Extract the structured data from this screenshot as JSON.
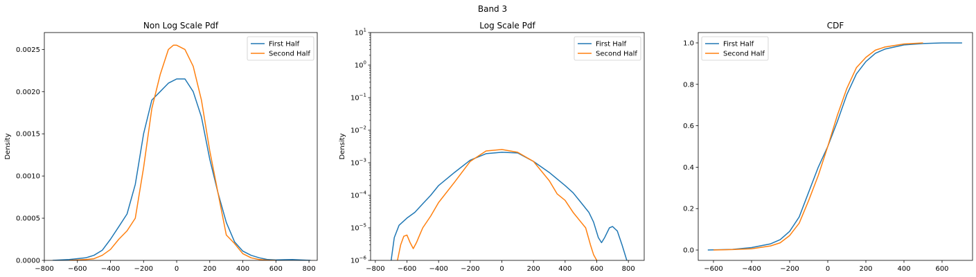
{
  "figure": {
    "title": "Band 3"
  },
  "colors": {
    "first_half": "#1f77b4",
    "second_half": "#ff7f0e"
  },
  "chart_data": [
    {
      "type": "line",
      "title": "Non Log Scale Pdf",
      "xlabel": "",
      "ylabel": "Density",
      "xlim": [
        -800,
        850
      ],
      "ylim": [
        0,
        0.0027
      ],
      "yscale": "linear",
      "xticks": [
        -800,
        -600,
        -400,
        -200,
        0,
        200,
        400,
        600,
        800
      ],
      "xtick_labels": [
        "−800",
        "−600",
        "−400",
        "−200",
        "0",
        "200",
        "400",
        "600",
        "800"
      ],
      "yticks": [
        0,
        0.0005,
        0.001,
        0.0015,
        0.002,
        0.0025
      ],
      "ytick_labels": [
        "0.0000",
        "0.0005",
        "0.0010",
        "0.0015",
        "0.0020",
        "0.0025"
      ],
      "legend": {
        "position": "top-right",
        "entries": [
          "First Half",
          "Second Half"
        ]
      },
      "series": [
        {
          "name": "First Half",
          "color": "#1f77b4",
          "x": [
            -750,
            -650,
            -550,
            -500,
            -450,
            -400,
            -350,
            -300,
            -250,
            -200,
            -150,
            -100,
            -50,
            0,
            50,
            100,
            150,
            200,
            250,
            300,
            350,
            400,
            450,
            500,
            550,
            600,
            650,
            700,
            750,
            810
          ],
          "y": [
            0,
            1e-05,
            3e-05,
            6e-05,
            0.00012,
            0.00025,
            0.0004,
            0.00055,
            0.0009,
            0.0015,
            0.0019,
            0.002,
            0.0021,
            0.00215,
            0.00215,
            0.002,
            0.0017,
            0.0012,
            0.0008,
            0.00045,
            0.00022,
            0.00011,
            6e-05,
            3e-05,
            1e-05,
            5e-06,
            8e-06,
            1e-05,
            5e-06,
            0
          ]
        },
        {
          "name": "Second Half",
          "color": "#ff7f0e",
          "x": [
            -650,
            -550,
            -500,
            -450,
            -400,
            -350,
            -300,
            -250,
            -200,
            -150,
            -100,
            -50,
            -20,
            0,
            50,
            100,
            150,
            200,
            250,
            300,
            350,
            400,
            450,
            500,
            550,
            600
          ],
          "y": [
            0,
            1e-05,
            2e-05,
            6e-05,
            0.00013,
            0.00025,
            0.00035,
            0.0005,
            0.0011,
            0.0018,
            0.0022,
            0.0025,
            0.00255,
            0.00255,
            0.0025,
            0.0023,
            0.0019,
            0.0013,
            0.0008,
            0.0003,
            0.0002,
            8e-05,
            3e-05,
            1e-05,
            2e-06,
            0
          ]
        }
      ]
    },
    {
      "type": "line",
      "title": "Log Scale Pdf",
      "xlabel": "",
      "ylabel": "Density",
      "xlim": [
        -830,
        900
      ],
      "ylim": [
        1e-06,
        10
      ],
      "yscale": "log",
      "xticks": [
        -800,
        -600,
        -400,
        -200,
        0,
        200,
        400,
        600,
        800
      ],
      "xtick_labels": [
        "−800",
        "−600",
        "−400",
        "−200",
        "0",
        "200",
        "400",
        "600",
        "800"
      ],
      "yticks": [
        1e-06,
        1e-05,
        0.0001,
        0.001,
        0.01,
        0.1,
        1,
        10
      ],
      "ytick_mantissa": [
        "10",
        "10",
        "10",
        "10",
        "10",
        "10",
        "10",
        "10"
      ],
      "ytick_exponents": [
        "−6",
        "−5",
        "−4",
        "−3",
        "−2",
        "−1",
        "0",
        "1"
      ],
      "legend": {
        "position": "top-right",
        "entries": [
          "First Half",
          "Second Half"
        ]
      },
      "series": [
        {
          "name": "First Half",
          "color": "#1f77b4",
          "x": [
            -700,
            -680,
            -650,
            -600,
            -550,
            -500,
            -450,
            -400,
            -300,
            -200,
            -100,
            0,
            100,
            200,
            300,
            400,
            450,
            500,
            550,
            580,
            610,
            630,
            650,
            680,
            700,
            730,
            760,
            790
          ],
          "y": [
            1e-06,
            5e-06,
            1.2e-05,
            2e-05,
            3e-05,
            5.5e-05,
            0.0001,
            0.0002,
            0.0005,
            0.0012,
            0.0019,
            0.0021,
            0.002,
            0.0011,
            0.0005,
            0.0002,
            0.00012,
            6e-05,
            3e-05,
            1.5e-05,
            5e-06,
            3.5e-06,
            5e-06,
            1e-05,
            1.1e-05,
            8e-06,
            3e-06,
            1e-06
          ]
        },
        {
          "name": "Second Half",
          "color": "#ff7f0e",
          "x": [
            -660,
            -640,
            -620,
            -600,
            -580,
            -560,
            -540,
            -520,
            -500,
            -450,
            -400,
            -300,
            -200,
            -100,
            0,
            100,
            200,
            300,
            350,
            400,
            450,
            500,
            530,
            560,
            580,
            600
          ],
          "y": [
            1e-06,
            3e-06,
            5.5e-06,
            6e-06,
            3.5e-06,
            2.3e-06,
            3.5e-06,
            6e-06,
            1e-05,
            2.3e-05,
            6e-05,
            0.00025,
            0.0011,
            0.0023,
            0.00255,
            0.0021,
            0.0011,
            0.00028,
            0.00011,
            7e-05,
            3e-05,
            1.5e-05,
            1e-05,
            3e-06,
            1.5e-06,
            1e-06
          ]
        }
      ]
    },
    {
      "type": "line",
      "title": "CDF",
      "xlabel": "",
      "ylabel": "",
      "xlim": [
        -680,
        760
      ],
      "ylim": [
        -0.05,
        1.05
      ],
      "yscale": "linear",
      "xticks": [
        -600,
        -400,
        -200,
        0,
        200,
        400,
        600
      ],
      "xtick_labels": [
        "−600",
        "−400",
        "−200",
        "0",
        "200",
        "400",
        "600"
      ],
      "yticks": [
        0,
        0.2,
        0.4,
        0.6,
        0.8,
        1.0
      ],
      "ytick_labels": [
        "0.0",
        "0.2",
        "0.4",
        "0.6",
        "0.8",
        "1.0"
      ],
      "legend": {
        "position": "top-left",
        "entries": [
          "First Half",
          "Second Half"
        ]
      },
      "series": [
        {
          "name": "First Half",
          "color": "#1f77b4",
          "x": [
            -630,
            -500,
            -400,
            -300,
            -250,
            -200,
            -150,
            -100,
            -50,
            0,
            50,
            100,
            150,
            200,
            250,
            300,
            400,
            500,
            600,
            705
          ],
          "y": [
            0,
            0.003,
            0.012,
            0.03,
            0.05,
            0.09,
            0.16,
            0.28,
            0.4,
            0.5,
            0.62,
            0.75,
            0.85,
            0.91,
            0.95,
            0.97,
            0.99,
            0.997,
            1.0,
            1.0
          ]
        },
        {
          "name": "Second Half",
          "color": "#ff7f0e",
          "x": [
            -600,
            -500,
            -400,
            -300,
            -250,
            -200,
            -150,
            -100,
            -50,
            0,
            50,
            100,
            150,
            200,
            250,
            300,
            400,
            500
          ],
          "y": [
            0,
            0.002,
            0.006,
            0.02,
            0.035,
            0.07,
            0.13,
            0.24,
            0.36,
            0.5,
            0.65,
            0.78,
            0.88,
            0.93,
            0.965,
            0.98,
            0.995,
            1.0
          ]
        }
      ]
    }
  ]
}
